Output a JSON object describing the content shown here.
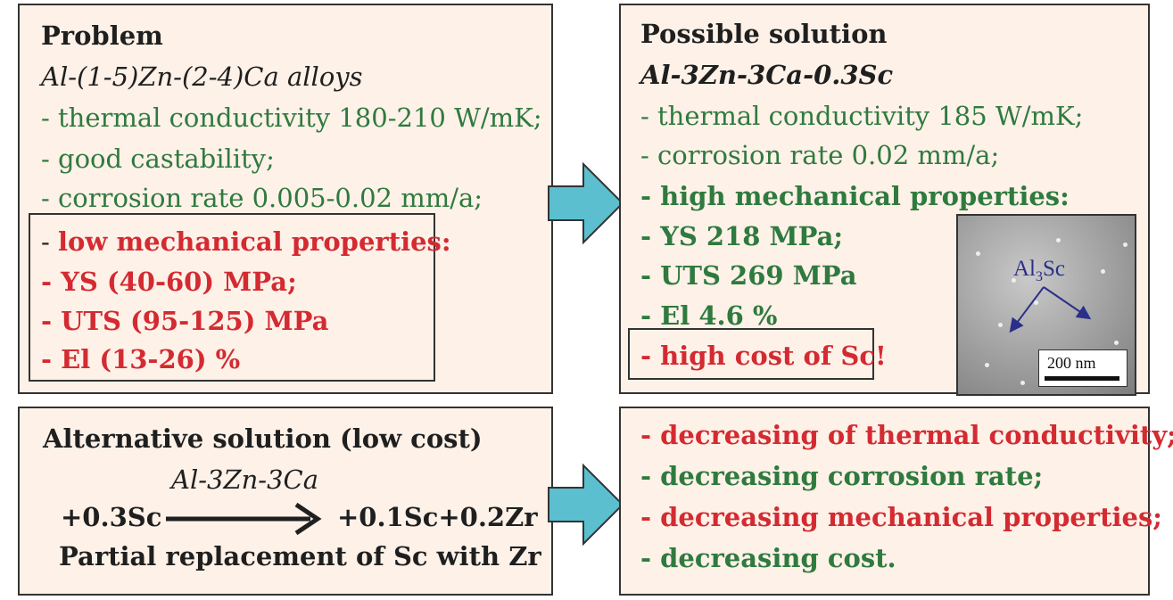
{
  "problem": {
    "title": "Problem",
    "alloy": "Al-(1-5)Zn-(2-4)Ca alloys",
    "items": [
      "- thermal conductivity 180-210 W/mK;",
      "- good castability;",
      "- corrosion rate 0.005-0.02 mm/a;"
    ],
    "low_mech_prefix": "- ",
    "low_mech_text": "low mechanical properties:",
    "mech_items": [
      "- YS (40-60) MPa;",
      "- UTS (95-125) MPa",
      "- El (13-26) %"
    ]
  },
  "possible": {
    "title": "Possible solution",
    "alloy": "Al-3Zn-3Ca-0.3Sc",
    "items": [
      "- thermal conductivity 185 W/mK;",
      "- corrosion rate 0.02 mm/a;"
    ],
    "mech_items": [
      "- high mechanical properties:",
      "- YS 218 MPa;",
      "- UTS 269 MPa",
      "- El 4.6 %"
    ],
    "cost_note": "- high cost of Sc!",
    "micrograph": {
      "label_main": "Al",
      "label_sub": "3",
      "label_tail": "Sc",
      "scale_label": "200 nm"
    }
  },
  "alternative": {
    "title": "Alternative solution (low cost)",
    "alloy": "Al-3Zn-3Ca",
    "from": "+0.3Sc",
    "to": "+0.1Sc+0.2Zr",
    "caption": "Partial replacement of Sc with Zr"
  },
  "outcomes": [
    "- decreasing of thermal conductivity;",
    "- decreasing corrosion rate;",
    "- decreasing mechanical properties;",
    "- decreasing cost."
  ],
  "colors": {
    "box_bg": "#fdf1e8",
    "green": "#2f7a3e",
    "red": "#d42a31",
    "arrow_fill": "#5bbfcf"
  }
}
